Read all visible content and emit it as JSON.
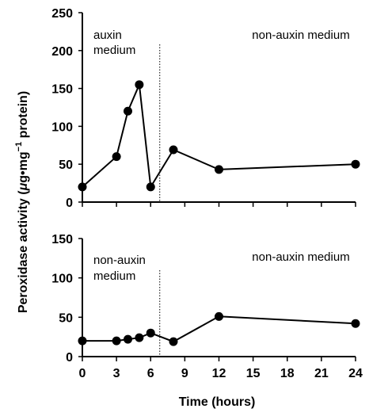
{
  "chart_data": [
    {
      "type": "line",
      "panel": "top",
      "x": [
        0,
        3,
        4,
        5,
        6,
        8,
        12,
        24
      ],
      "series": [
        {
          "values": [
            20,
            60,
            120,
            155,
            20,
            69,
            43,
            50
          ]
        }
      ],
      "ylim": [
        0,
        250
      ],
      "yticks": [
        0,
        50,
        100,
        150,
        200,
        250
      ],
      "xlim": [
        0,
        24
      ],
      "divider_x": 6.8,
      "annotations": [
        {
          "text": "auxin",
          "region": "left"
        },
        {
          "text": "medium",
          "region": "left"
        },
        {
          "text": "non-auxin medium",
          "region": "right"
        }
      ],
      "grid": false,
      "marker": "filled-circle",
      "color": "#000000"
    },
    {
      "type": "line",
      "panel": "bottom",
      "x": [
        0,
        3,
        4,
        5,
        6,
        8,
        12,
        24
      ],
      "series": [
        {
          "values": [
            20,
            20,
            22,
            24,
            30,
            19,
            51,
            42
          ]
        }
      ],
      "ylim": [
        0,
        150
      ],
      "yticks": [
        0,
        50,
        100,
        150
      ],
      "xlim": [
        0,
        24
      ],
      "xticks": [
        0,
        3,
        6,
        9,
        12,
        15,
        18,
        21,
        24
      ],
      "divider_x": 6.8,
      "annotations": [
        {
          "text": "non-auxin",
          "region": "left"
        },
        {
          "text": "medium",
          "region": "left"
        },
        {
          "text": "non-auxin medium",
          "region": "right"
        }
      ],
      "grid": false,
      "marker": "filled-circle",
      "color": "#000000"
    }
  ],
  "labels": {
    "ylabel_prefix": "Peroxidase activity (",
    "ylabel_mu": "μ",
    "ylabel_g": "g",
    "ylabel_dot": "•",
    "ylabel_mg": "mg",
    "ylabel_sup": "−1",
    "ylabel_suffix": " protein)",
    "xlabel": "Time (hours)"
  }
}
